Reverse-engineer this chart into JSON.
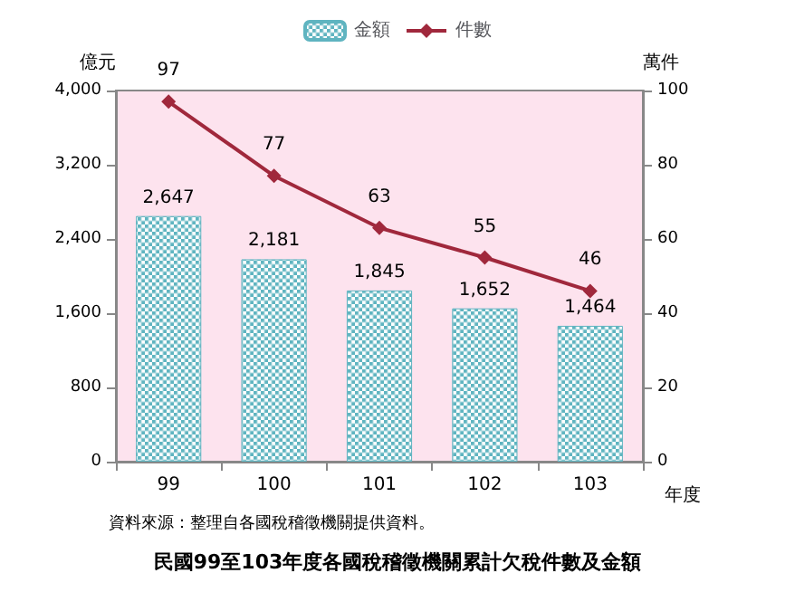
{
  "chart_data": {
    "type": "bar",
    "title": "民國99至103年度各國稅稽徵機關累計欠稅件數及金額",
    "xlabel": "年度",
    "ylabel": "億元",
    "y2label": "萬件",
    "categories": [
      "99",
      "100",
      "101",
      "102",
      "103"
    ],
    "series": [
      {
        "name": "金額",
        "color": "#5fb4c0",
        "values": [
          2647,
          2181,
          1845,
          1652,
          1464
        ],
        "value_labels": [
          "2,647",
          "2,181",
          "1,845",
          "1,652",
          "1,464"
        ]
      },
      {
        "name": "件數",
        "type": "line",
        "axis": "y2",
        "color": "#a0283c",
        "values": [
          97,
          77,
          63,
          55,
          46
        ],
        "value_labels": [
          "97",
          "77",
          "63",
          "55",
          "46"
        ]
      }
    ],
    "ylim": [
      0,
      4000
    ],
    "yticks": [
      0,
      {
        "value": 800,
        "label": "800"
      },
      {
        "value": 1600,
        "label": "1,600"
      },
      {
        "value": 2400,
        "label": "2,400"
      },
      {
        "value": 3200,
        "label": "3,200"
      },
      {
        "value": 4000,
        "label": "4,000"
      }
    ],
    "y2lim": [
      0,
      100
    ],
    "y2ticks": [
      0,
      20,
      40,
      60,
      80,
      100
    ],
    "marker": "diamond",
    "legend": "top",
    "grid": false,
    "annotations": [
      "資料來源：整理自各國稅稽徵機關提供資料。"
    ]
  }
}
